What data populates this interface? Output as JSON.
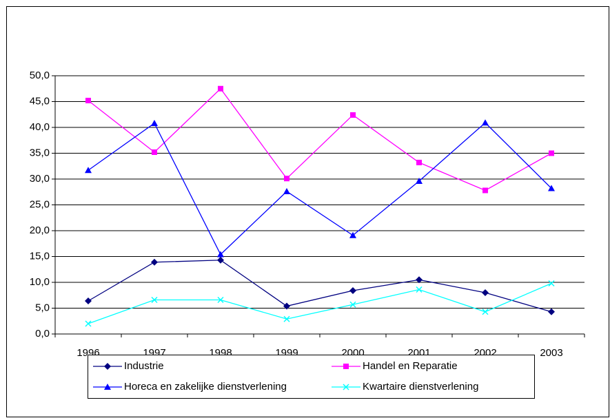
{
  "chart_data": {
    "type": "line",
    "categories": [
      "1996",
      "1997",
      "1998",
      "1999",
      "2000",
      "2001",
      "2002",
      "2003"
    ],
    "series": [
      {
        "name": "Industrie",
        "color": "#000080",
        "marker": "diamond",
        "values": [
          6.4,
          13.9,
          14.3,
          5.4,
          8.4,
          10.5,
          8.0,
          4.3
        ]
      },
      {
        "name": "Handel en Reparatie",
        "color": "#ff00ff",
        "marker": "square",
        "values": [
          45.2,
          35.2,
          47.5,
          30.1,
          42.4,
          33.2,
          27.8,
          35.0
        ]
      },
      {
        "name": "Horeca en zakelijke dienstverlening",
        "color": "#0000ff",
        "marker": "triangle",
        "values": [
          31.7,
          40.8,
          15.4,
          27.6,
          19.1,
          29.6,
          40.9,
          28.2
        ]
      },
      {
        "name": "Kwartaire dienstverlening",
        "color": "#00ffff",
        "marker": "x",
        "values": [
          2.0,
          6.6,
          6.6,
          2.9,
          5.7,
          8.6,
          4.3,
          9.8
        ]
      }
    ],
    "ylim": [
      0,
      50
    ],
    "yticks": [
      {
        "value": 0,
        "label": "0,0"
      },
      {
        "value": 5,
        "label": "5,0"
      },
      {
        "value": 10,
        "label": "10,0"
      },
      {
        "value": 15,
        "label": "15,0"
      },
      {
        "value": 20,
        "label": "20,0"
      },
      {
        "value": 25,
        "label": "25,0"
      },
      {
        "value": 30,
        "label": "30,0"
      },
      {
        "value": 35,
        "label": "35,0"
      },
      {
        "value": 40,
        "label": "40,0"
      },
      {
        "value": 45,
        "label": "45,0"
      },
      {
        "value": 50,
        "label": "50,0"
      }
    ],
    "grid": true,
    "legend": "bottom"
  }
}
